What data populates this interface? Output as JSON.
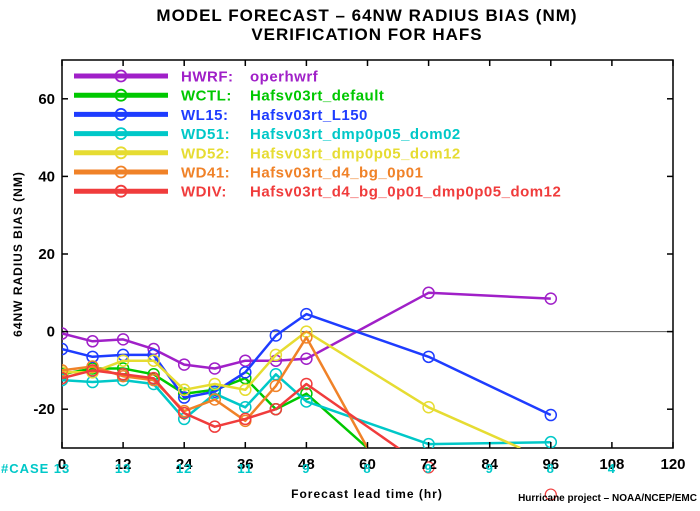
{
  "chart_data": {
    "type": "line",
    "title": [
      "MODEL FORECAST – 64NW RADIUS BIAS (NM)",
      "VERIFICATION FOR HAFS"
    ],
    "xlabel": "Forecast lead time (hr)",
    "ylabel": "64NW RADIUS BIAS (NM)",
    "xlim": [
      0,
      120
    ],
    "ylim": [
      -30,
      70
    ],
    "x_ticks": [
      "0",
      "12",
      "24",
      "36",
      "48",
      "60",
      "72",
      "84",
      "96",
      "108",
      "120"
    ],
    "y_ticks": [
      "-20",
      "0",
      "20",
      "40",
      "60"
    ],
    "zero_line": true,
    "grid": false,
    "legend_position": "top-left",
    "series": [
      {
        "name": "HWRF: operhwrf",
        "label": "HWRF:",
        "desc": "operhwrf",
        "color": "#a020c8",
        "x": [
          0,
          6,
          12,
          18,
          24,
          30,
          36,
          42,
          48,
          72,
          96
        ],
        "y": [
          -0.5,
          -2.5,
          -2,
          -4.5,
          -8.5,
          -9.5,
          -7.5,
          -7.5,
          -7,
          10,
          8.5
        ]
      },
      {
        "name": "WCTL: Hafsv03rt_default",
        "label": "WCTL:",
        "desc": "Hafsv03rt_default",
        "color": "#00c800",
        "x": [
          0,
          6,
          12,
          18,
          24,
          30,
          36,
          42,
          48,
          60
        ],
        "y": [
          -11,
          -9.5,
          -9.5,
          -11,
          -16,
          -15,
          -12,
          -20,
          -16,
          -30
        ]
      },
      {
        "name": "WL15: Hafsv03rt_L150",
        "label": "WL15:",
        "desc": "Hafsv03rt_L150",
        "color": "#1e3cff",
        "x": [
          0,
          6,
          12,
          18,
          24,
          30,
          36,
          42,
          48,
          72,
          96
        ],
        "y": [
          -4.5,
          -6.5,
          -6,
          -6,
          -17,
          -15.5,
          -10.5,
          -1,
          4.5,
          -6.5,
          -21.5
        ]
      },
      {
        "name": "WD51: Hafsv03rt_dmp0p05_dom02",
        "label": "WD51:",
        "desc": "Hafsv03rt_dmp0p05_dom02",
        "color": "#00c8c8",
        "x": [
          0,
          6,
          12,
          18,
          24,
          30,
          36,
          42,
          48,
          72,
          96
        ],
        "y": [
          -12.5,
          -13,
          -12.5,
          -13.5,
          -22.5,
          -16,
          -19.5,
          -11,
          -18,
          -29,
          -28.5
        ]
      },
      {
        "name": "WD52: Hafsv03rt_dmp0p05_dom12",
        "label": "WD52:",
        "desc": "Hafsv03rt_dmp0p05_dom12",
        "color": "#e6dc32",
        "x": [
          0,
          6,
          12,
          18,
          24,
          30,
          36,
          42,
          48,
          72,
          90
        ],
        "y": [
          -10.5,
          -10.5,
          -7.5,
          -7.5,
          -15,
          -13.5,
          -15,
          -6,
          0,
          -19.5,
          -30
        ]
      },
      {
        "name": "WD41: Hafsv03rt_d4_bg_0p01",
        "label": "WD41:",
        "desc": "Hafsv03rt_d4_bg_0p01",
        "color": "#f08228",
        "x": [
          0,
          6,
          12,
          18,
          24,
          30,
          36,
          42,
          48,
          60
        ],
        "y": [
          -10,
          -9,
          -11.5,
          -12.5,
          -20.5,
          -17.5,
          -23,
          -14,
          -1.5,
          -30
        ]
      },
      {
        "name": "WDIV: Hafsv03rt_d4_bg_0p01_dmp0p05_dom12",
        "label": "WDIV:",
        "desc": "Hafsv03rt_d4_bg_0p01_dmp0p05_dom12",
        "color": "#f03c3c",
        "x": [
          0,
          6,
          12,
          18,
          24,
          30,
          36,
          42,
          48,
          66,
          72,
          96
        ],
        "y": [
          -12,
          -10,
          -11,
          -12,
          -21,
          -24.5,
          -22.5,
          -20,
          -13.5,
          -30,
          -35,
          -42
        ]
      }
    ],
    "cases": {
      "label": "#CASE",
      "x": [
        0,
        12,
        24,
        36,
        48,
        60,
        72,
        84,
        96,
        108
      ],
      "values": [
        "13",
        "13",
        "12",
        "11",
        "9",
        "8",
        "9",
        "9",
        "8",
        "4"
      ]
    },
    "credit": "Hurricane project – NOAA/NCEP/EMC"
  }
}
